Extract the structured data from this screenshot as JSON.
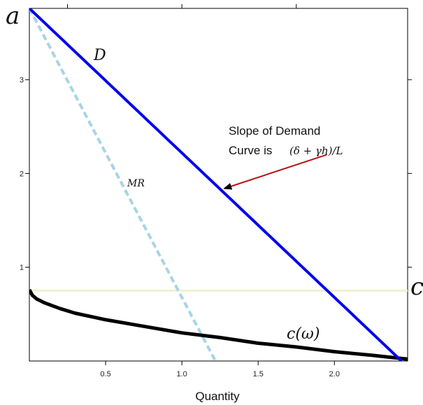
{
  "chart_data": {
    "type": "line",
    "title": "",
    "xlabel": "Quantity",
    "ylabel": "",
    "xlim": [
      0,
      2.48
    ],
    "ylim": [
      0,
      3.76
    ],
    "xticks": [
      {
        "value": 0.5,
        "label": "0.5"
      },
      {
        "value": 1.0,
        "label": "1.0"
      },
      {
        "value": 1.5,
        "label": "1.5"
      },
      {
        "value": 2.0,
        "label": "2.0"
      }
    ],
    "yticks": [
      {
        "value": 1,
        "label": "1"
      },
      {
        "value": 2,
        "label": "2"
      },
      {
        "value": 3,
        "label": "3"
      }
    ],
    "grid": false,
    "series": [
      {
        "name": "D",
        "style": "solid",
        "color": "#0000ee",
        "x": [
          0,
          2.44
        ],
        "y": [
          3.76,
          0
        ]
      },
      {
        "name": "MR",
        "style": "dashed",
        "color": "#a8d4e6",
        "x": [
          0,
          1.22
        ],
        "y": [
          3.76,
          0
        ]
      },
      {
        "name": "c(ω)",
        "style": "solid",
        "color": "#000000",
        "x": [
          0,
          0.02,
          0.05,
          0.1,
          0.2,
          0.3,
          0.5,
          0.75,
          1.0,
          1.25,
          1.5,
          1.75,
          2.0,
          2.25,
          2.48
        ],
        "y": [
          0.76,
          0.7,
          0.66,
          0.62,
          0.56,
          0.51,
          0.44,
          0.37,
          0.3,
          0.25,
          0.19,
          0.15,
          0.1,
          0.06,
          0.02
        ]
      },
      {
        "name": "c",
        "style": "solid",
        "color": "#eef2cc",
        "x": [
          0,
          2.48
        ],
        "y": [
          0.75,
          0.75
        ]
      }
    ],
    "labels": {
      "a": "a",
      "D": "D",
      "MR": "MR",
      "c_omega": "c(ω)",
      "c": "c"
    },
    "annotation": {
      "line1": "Slope of Demand",
      "line2": "Curve is",
      "math": "(δ + γh)/L",
      "arrow_from": [
        1.95,
        2.2
      ],
      "arrow_to": [
        1.28,
        1.84
      ]
    }
  }
}
